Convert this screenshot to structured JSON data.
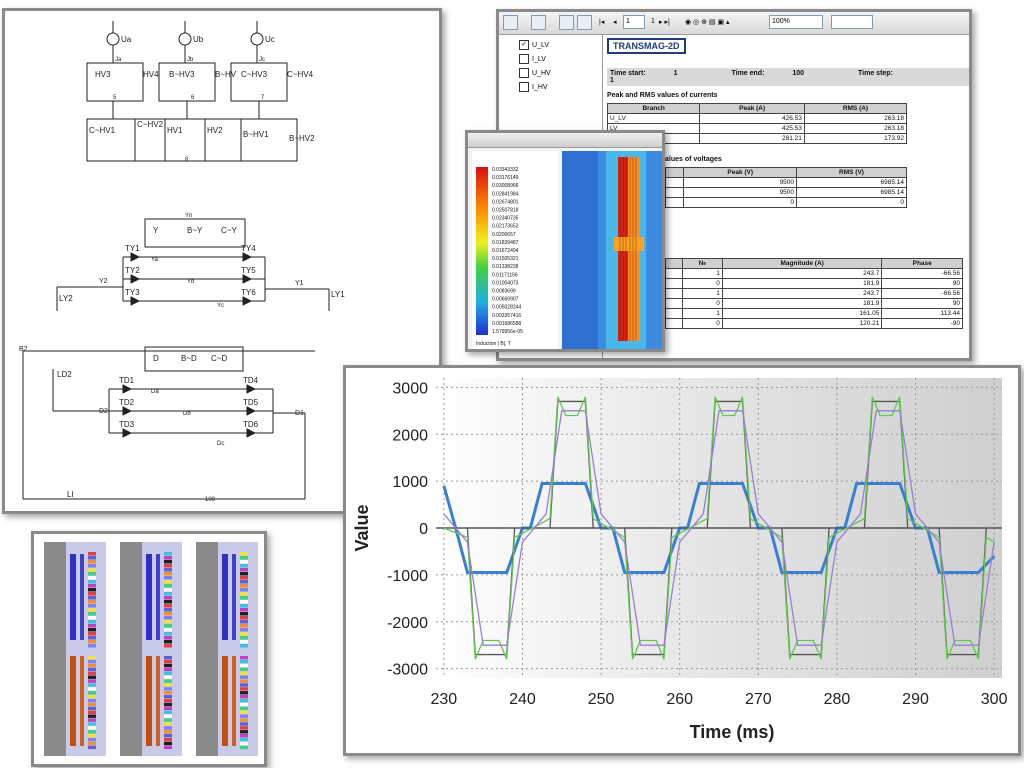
{
  "report": {
    "zoom": "100%",
    "page_num": "1",
    "page_total": "1",
    "tree": [
      {
        "label": "U_LV",
        "checked": true
      },
      {
        "label": "I_LV",
        "checked": false
      },
      {
        "label": "U_HV",
        "checked": false
      },
      {
        "label": "I_HV",
        "checked": false
      }
    ],
    "title": "TRANSMAG-2D",
    "time_start_label": "Time start:",
    "time_start": "1",
    "time_end_label": "Time end:",
    "time_end": "100",
    "time_step_label": "Time step:",
    "time_step": "1",
    "currents_heading": "Peak and RMS values of currents",
    "currents_headers": [
      "Branch",
      "Peak (A)",
      "RMS (A)"
    ],
    "currents_rows": [
      [
        "U_LV",
        "426.53",
        "263.18"
      ],
      [
        "LV",
        "425.53",
        "263.18"
      ],
      [
        "",
        "281.21",
        "173.92"
      ]
    ],
    "voltages_heading": "alues of voltages",
    "voltages_headers": [
      "",
      "Peak (V)",
      "RMS (V)"
    ],
    "voltages_rows": [
      [
        "",
        "9500",
        "6985.14"
      ],
      [
        "",
        "9500",
        "6985.14"
      ],
      [
        "",
        "0",
        "0"
      ]
    ],
    "harm_headers": [
      "",
      "№",
      "Magnitude (A)",
      "Phase"
    ],
    "harm_rows": [
      [
        "",
        "1",
        "243.7",
        "-66.56"
      ],
      [
        "",
        "0",
        "181.9",
        "90"
      ],
      [
        "",
        "1",
        "243.7",
        "-66.56"
      ],
      [
        "",
        "0",
        "181.9",
        "90"
      ],
      [
        "",
        "1",
        "161.05",
        "113.44"
      ],
      [
        "",
        "0",
        "120.21",
        "-90"
      ]
    ]
  },
  "field": {
    "legend_values": [
      "0.03343332",
      "0.03176149",
      "0.03008966",
      "0.02841984",
      "0.02674801",
      "0.02507818",
      "0.02340735",
      "0.02173652",
      "0.0200657",
      "0.01839487",
      "0.01672404",
      "0.01505321",
      "0.01338238",
      "0.01171156",
      "0.01004073",
      "0.0083699",
      "0.00669907",
      "0.005028244",
      "0.003357416",
      "0.001686588",
      "1.579956e-05"
    ],
    "legend_caption": "Induction | B|, T"
  },
  "schematic": {
    "sources": [
      "Ua",
      "Ub",
      "Uc"
    ],
    "hv_row1": [
      "HV3",
      "HV4",
      "B~HV3",
      "B~HV",
      "C~HV3",
      "C~HV4"
    ],
    "node_labels_1": [
      "Ja",
      "Jb",
      "Jc"
    ],
    "nodes_1": [
      "5",
      "6",
      "7"
    ],
    "hv_row2": [
      "C~HV1",
      "C~HV2",
      "HV1",
      "HV2",
      "B~HV1",
      "B~HV2"
    ],
    "node_8": "8",
    "y_label_top": "Yn",
    "y_windings": [
      "Y",
      "B~Y",
      "C~Y"
    ],
    "ty": [
      "TY1",
      "TY2",
      "TY3",
      "TY4",
      "TY5",
      "TY6"
    ],
    "y_nodes": [
      "Ya",
      "Yb",
      "Yc",
      "Y2",
      "Y1"
    ],
    "ly": [
      "LY2",
      "LY1"
    ],
    "d_windings": [
      "D",
      "B~D",
      "C~D"
    ],
    "td": [
      "TD1",
      "TD2",
      "TD3",
      "TD4",
      "TD5",
      "TD6"
    ],
    "d_nodes": [
      "Da",
      "Db",
      "Dc",
      "D2",
      "D1",
      "B2"
    ],
    "ld": "LD2",
    "bottom": [
      "LI",
      "100"
    ]
  },
  "waveform_chart": {
    "chart_data": {
      "type": "line",
      "xlabel": "Time (ms)",
      "ylabel": "Value",
      "xlim": [
        229,
        301
      ],
      "ylim": [
        -3200,
        3200
      ],
      "xticks": [
        230,
        240,
        250,
        260,
        270,
        280,
        290,
        300
      ],
      "yticks": [
        3000,
        2000,
        1000,
        0,
        -1000,
        -2000,
        -3000
      ],
      "grid": true,
      "series": [
        {
          "color": "#3a7fd4",
          "x": [
            230,
            231.5,
            233,
            238,
            240,
            241,
            242.5,
            248,
            250,
            251.5,
            253,
            258,
            260,
            261,
            262.5,
            268,
            270,
            271.5,
            273,
            278,
            280,
            281,
            282.5,
            288,
            290,
            291.5,
            293,
            298,
            300
          ],
          "y": [
            900,
            0,
            -950,
            -950,
            0,
            0,
            950,
            950,
            0,
            0,
            -950,
            -950,
            0,
            0,
            950,
            950,
            0,
            0,
            -950,
            -950,
            0,
            0,
            950,
            950,
            0,
            0,
            -950,
            -950,
            -600
          ]
        },
        {
          "color": "#555555",
          "x": [
            230,
            233,
            234,
            238,
            239,
            243.5,
            244.5,
            248,
            249,
            253,
            254,
            258,
            259,
            263.5,
            264.5,
            268,
            269,
            273,
            274,
            278,
            279,
            283.5,
            284.5,
            288,
            289,
            293,
            294,
            298,
            299,
            300
          ],
          "y": [
            0,
            0,
            -2700,
            -2700,
            0,
            0,
            2700,
            2700,
            0,
            0,
            -2700,
            -2700,
            0,
            0,
            2700,
            2700,
            0,
            0,
            -2700,
            -2700,
            0,
            0,
            2700,
            2700,
            0,
            0,
            -2700,
            -2700,
            0,
            0
          ]
        },
        {
          "color": "#5fc94f",
          "x": [
            230,
            233,
            234,
            235,
            237,
            238,
            239,
            243.5,
            244.5,
            245.5,
            247,
            248,
            249,
            253,
            254,
            255,
            257,
            258,
            259,
            263.5,
            264.5,
            265.5,
            267,
            268,
            269,
            273,
            274,
            275,
            277,
            278,
            279,
            283.5,
            284.5,
            285.5,
            287,
            288,
            289,
            293,
            294,
            295,
            297,
            298,
            299,
            300
          ],
          "y": [
            0,
            -200,
            -2800,
            -2400,
            -2400,
            -2800,
            -200,
            200,
            2800,
            2400,
            2400,
            2800,
            200,
            -200,
            -2800,
            -2400,
            -2400,
            -2800,
            -200,
            200,
            2800,
            2400,
            2400,
            2800,
            200,
            -200,
            -2800,
            -2400,
            -2400,
            -2800,
            -200,
            200,
            2800,
            2400,
            2400,
            2800,
            200,
            -200,
            -2800,
            -2400,
            -2400,
            -2800,
            -200,
            -300
          ]
        },
        {
          "color": "#9a7fd0",
          "x": [
            230,
            233,
            235,
            238,
            240,
            243,
            245,
            248,
            250,
            253,
            255,
            258,
            260,
            263,
            265,
            268,
            270,
            273,
            275,
            278,
            280,
            283,
            285,
            288,
            290,
            293,
            295,
            298,
            300
          ],
          "y": [
            300,
            -300,
            -2500,
            -2500,
            -300,
            300,
            2500,
            2500,
            300,
            -300,
            -2500,
            -2500,
            -300,
            300,
            2500,
            2500,
            300,
            -300,
            -2500,
            -2500,
            -300,
            300,
            2500,
            2500,
            300,
            -300,
            -2500,
            -2500,
            -300
          ]
        }
      ]
    }
  },
  "windings": {
    "columns": 3
  }
}
